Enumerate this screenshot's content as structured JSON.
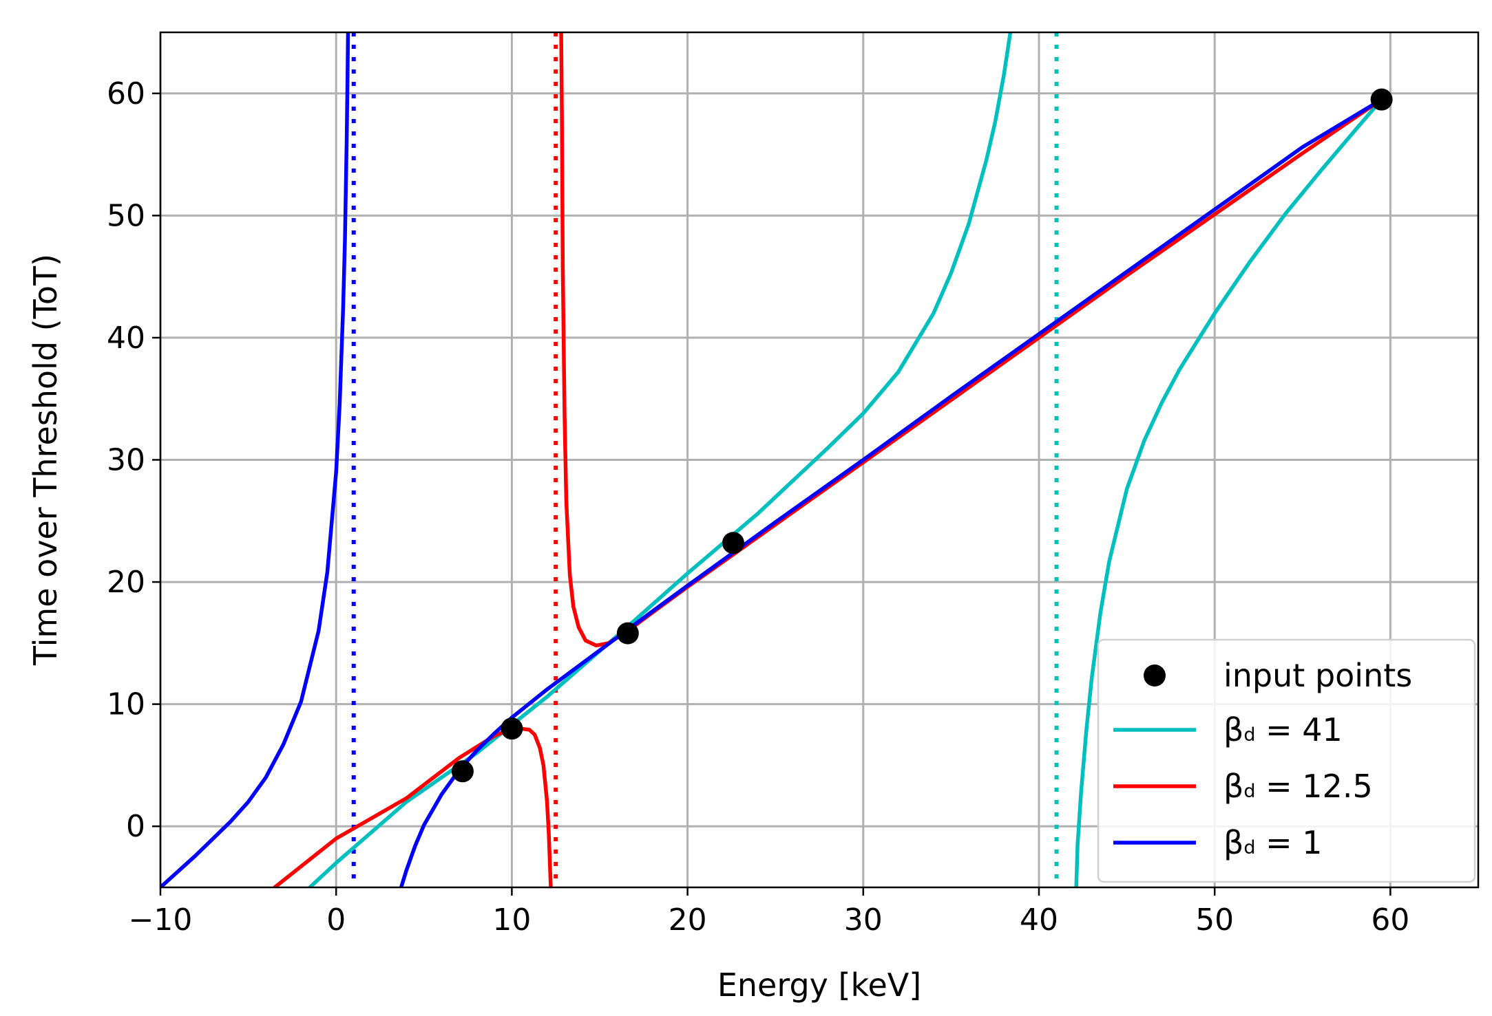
{
  "chart_data": {
    "type": "line",
    "title": "",
    "xlabel": "Energy [keV]",
    "ylabel": "Time over Threshold (ToT)",
    "xlim": [
      -10,
      65
    ],
    "ylim": [
      -5,
      65
    ],
    "xticks": [
      -10,
      0,
      10,
      20,
      30,
      40,
      50,
      60
    ],
    "xtick_labels": [
      "−10",
      "0",
      "10",
      "20",
      "30",
      "40",
      "50",
      "60"
    ],
    "yticks": [
      0,
      10,
      20,
      30,
      40,
      50,
      60
    ],
    "ytick_labels": [
      "0",
      "10",
      "20",
      "30",
      "40",
      "50",
      "60"
    ],
    "grid": true,
    "legend_position": "lower-right",
    "input_points": {
      "name": "input points",
      "color": "#000000",
      "x": [
        7.2,
        10.0,
        16.6,
        22.6,
        59.5
      ],
      "y": [
        4.5,
        8.0,
        15.8,
        23.2,
        59.5
      ]
    },
    "series": [
      {
        "name": "βd = 41",
        "legend_base": "β",
        "legend_sub": "d",
        "legend_value": " = 41",
        "color": "#00bfbf",
        "asymptote_x": 41.0,
        "branches": [
          {
            "x": [
              -1.5,
              0,
              4,
              8,
              12,
              16,
              20,
              24,
              28,
              30,
              32,
              34,
              35,
              36,
              37,
              37.5,
              38,
              38.5,
              39.0,
              39.2
            ],
            "y": [
              -5.0,
              -3.0,
              2.0,
              6.0,
              10.6,
              15.6,
              20.7,
              25.6,
              31.0,
              33.8,
              37.2,
              42.0,
              45.3,
              49.3,
              54.5,
              57.6,
              61.5,
              66.2,
              72.0,
              75.0
            ]
          },
          {
            "x": [
              42.1,
              42.2,
              42.4,
              42.7,
              43.0,
              43.5,
              44,
              45,
              46,
              47,
              48,
              50,
              52,
              54,
              56,
              58,
              59.5
            ],
            "y": [
              -6.0,
              -1.5,
              2.8,
              7.9,
              12.1,
              17.5,
              21.7,
              27.6,
              31.6,
              34.7,
              37.4,
              42.0,
              46.2,
              50.1,
              53.6,
              57.0,
              59.5
            ]
          }
        ]
      },
      {
        "name": "βd = 12.5",
        "legend_base": "β",
        "legend_sub": "d",
        "legend_value": " = 12.5",
        "color": "#ff0000",
        "asymptote_x": 12.5,
        "branches": [
          {
            "x": [
              -3.5,
              0,
              4,
              7,
              9,
              10,
              10.5,
              11.0,
              11.3,
              11.6,
              11.8,
              12.0,
              12.1,
              12.2,
              12.25
            ],
            "y": [
              -5.0,
              -1.0,
              2.3,
              5.6,
              7.4,
              8.0,
              8.0,
              7.9,
              7.5,
              6.4,
              5.0,
              2.1,
              -0.5,
              -4.3,
              -6.0
            ]
          },
          {
            "x": [
              12.8,
              12.85,
              12.9,
              13.0,
              13.1,
              13.3,
              13.5,
              13.8,
              14.2,
              14.8,
              15.5,
              16.5,
              18,
              20,
              25,
              30,
              35,
              40,
              45,
              50,
              55,
              59.5
            ],
            "y": [
              66.0,
              58.2,
              45.7,
              33.6,
              26.6,
              20.6,
              18.0,
              16.3,
              15.2,
              14.8,
              15.0,
              15.9,
              17.5,
              19.6,
              24.7,
              29.8,
              34.9,
              40.0,
              45.1,
              50.1,
              55.1,
              59.5
            ]
          }
        ]
      },
      {
        "name": "βd = 1",
        "legend_base": "β",
        "legend_sub": "d",
        "legend_value": " = 1",
        "color": "#0000ff",
        "asymptote_x": 1.0,
        "branches": [
          {
            "x": [
              -10,
              -8,
              -6,
              -5,
              -4,
              -3,
              -2,
              -1,
              -0.5,
              0,
              0.2,
              0.4,
              0.5,
              0.6,
              0.65,
              0.7
            ],
            "y": [
              -5.0,
              -2.4,
              0.4,
              2.0,
              4.0,
              6.7,
              10.2,
              16.0,
              20.8,
              29.0,
              34.5,
              42.5,
              48.0,
              56.0,
              61.5,
              68.0
            ]
          },
          {
            "x": [
              3.7,
              4.0,
              4.5,
              5,
              6,
              7,
              8,
              9,
              10,
              12,
              15,
              18,
              20,
              25,
              30,
              35,
              40,
              45,
              50,
              55,
              59.5
            ],
            "y": [
              -5.0,
              -3.6,
              -1.6,
              0.1,
              2.6,
              4.6,
              6.2,
              7.6,
              8.9,
              11.2,
              14.4,
              17.6,
              19.7,
              24.9,
              30.0,
              35.2,
              40.3,
              45.4,
              50.5,
              55.6,
              59.5
            ]
          }
        ]
      }
    ]
  }
}
